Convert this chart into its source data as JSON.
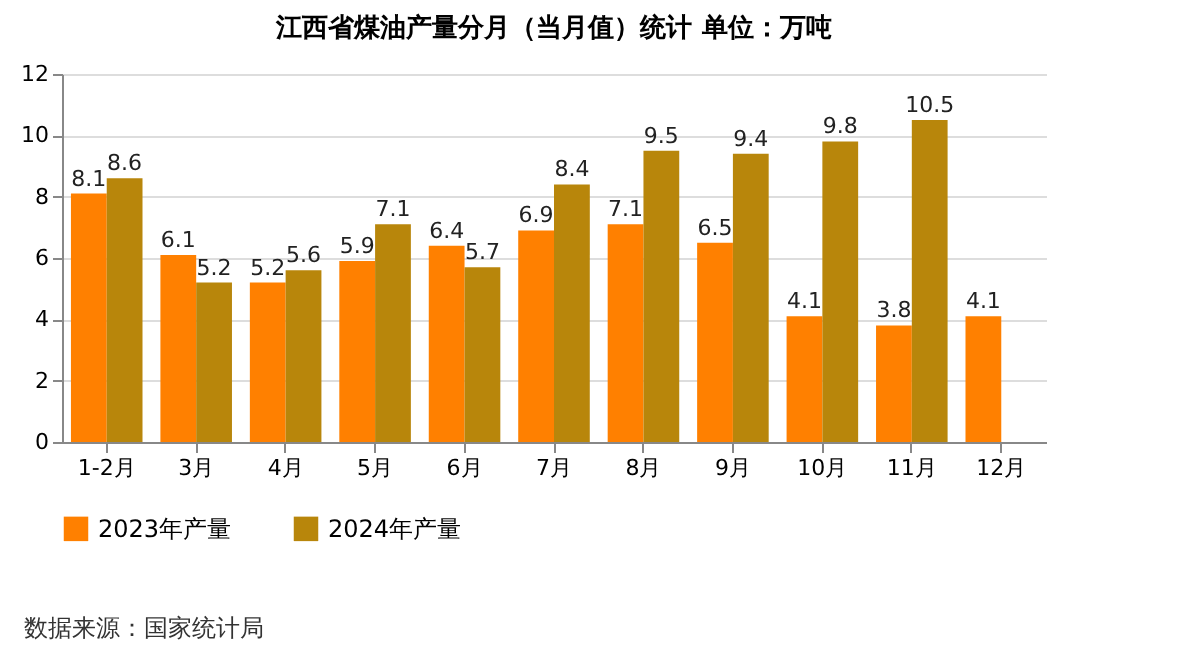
{
  "chart_data": {
    "type": "bar",
    "title": "江西省煤油产量分月（当月值）统计 单位：万吨",
    "categories": [
      "1-2月",
      "3月",
      "4月",
      "5月",
      "6月",
      "7月",
      "8月",
      "9月",
      "10月",
      "11月",
      "12月"
    ],
    "series": [
      {
        "name": "2023年产量",
        "color": "#ff8000",
        "values": [
          8.1,
          6.1,
          5.2,
          5.9,
          6.4,
          6.9,
          7.1,
          6.5,
          4.1,
          3.8,
          4.1
        ]
      },
      {
        "name": "2024年产量",
        "color": "#b8860b",
        "values": [
          8.6,
          5.2,
          5.6,
          7.1,
          5.7,
          8.4,
          9.5,
          9.4,
          9.8,
          10.5,
          null
        ]
      }
    ],
    "ylim": [
      0,
      12
    ],
    "yticks": [
      0,
      2,
      4,
      6,
      8,
      10,
      12
    ],
    "grid": "y",
    "legend": "bottom",
    "data_labels": true,
    "annotations": [
      "数据来源：国家统计局"
    ]
  }
}
